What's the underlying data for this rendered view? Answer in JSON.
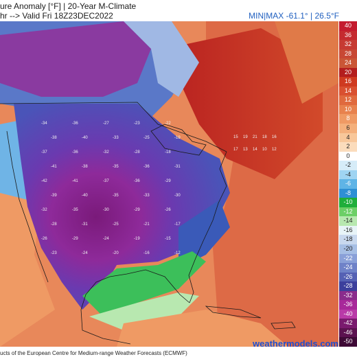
{
  "header": {
    "title_line": "ure Anomaly [°F] | 20-Year M-Climate",
    "valid_line": "hr --> Valid Fri 18Z23DEC2022",
    "minmax": "MIN|MAX -61.1° | 26.5°F"
  },
  "footer": {
    "credit": "ucts of the European Centre for Medium-range Weather Forecasts (ECMWF)",
    "website": "weathermodels.com"
  },
  "colorbar": {
    "ticks": [
      {
        "label": "40",
        "color": "#c41a2e"
      },
      {
        "label": "36",
        "color": "#c52a30"
      },
      {
        "label": "32",
        "color": "#c63a32"
      },
      {
        "label": "28",
        "color": "#c84834"
      },
      {
        "label": "24",
        "color": "#ca5636"
      },
      {
        "label": "20",
        "color": "#b41e1e"
      },
      {
        "label": "16",
        "color": "#cf3a20"
      },
      {
        "label": "14",
        "color": "#d95030"
      },
      {
        "label": "12",
        "color": "#e06a3e"
      },
      {
        "label": "10",
        "color": "#e8824e"
      },
      {
        "label": "8",
        "color": "#ef9a64"
      },
      {
        "label": "6",
        "color": "#f4b07c"
      },
      {
        "label": "4",
        "color": "#f8c79a"
      },
      {
        "label": "2",
        "color": "#fbdcbc"
      },
      {
        "label": "0",
        "color": "#ffffff"
      },
      {
        "label": "-2",
        "color": "#d6ecf8"
      },
      {
        "label": "-4",
        "color": "#9fd4f2"
      },
      {
        "label": "-6",
        "color": "#5fb4e6"
      },
      {
        "label": "-8",
        "color": "#2f8fd4"
      },
      {
        "label": "-10",
        "color": "#1fae3a"
      },
      {
        "label": "-12",
        "color": "#6ccf66"
      },
      {
        "label": "-14",
        "color": "#b8e8b0"
      },
      {
        "label": "-16",
        "color": "#e8f4f8"
      },
      {
        "label": "-18",
        "color": "#c8d8ee"
      },
      {
        "label": "-20",
        "color": "#a6bee4"
      },
      {
        "label": "-22",
        "color": "#8aa0d8"
      },
      {
        "label": "-24",
        "color": "#6f82c8"
      },
      {
        "label": "-26",
        "color": "#5561b4"
      },
      {
        "label": "-28",
        "color": "#3c3f9c"
      },
      {
        "label": "-32",
        "color": "#8a2c8c"
      },
      {
        "label": "-36",
        "color": "#a8289a"
      },
      {
        "label": "-40",
        "color": "#b93aa8"
      },
      {
        "label": "-42",
        "color": "#7a1a6e"
      },
      {
        "label": "-46",
        "color": "#5c1250"
      },
      {
        "label": "-50",
        "color": "#3e0a36"
      }
    ]
  },
  "anomaly_labels": [
    {
      "v": "-34"
    },
    {
      "v": "-36"
    },
    {
      "v": "-27"
    },
    {
      "v": "-23"
    },
    {
      "v": "-22"
    },
    {
      "v": "-38"
    },
    {
      "v": "-40"
    },
    {
      "v": "-33"
    },
    {
      "v": "-25"
    },
    {
      "v": "-19"
    },
    {
      "v": "-37"
    },
    {
      "v": "-36"
    },
    {
      "v": "-32"
    },
    {
      "v": "-28"
    },
    {
      "v": "-18"
    },
    {
      "v": "-41"
    },
    {
      "v": "-38"
    },
    {
      "v": "-35"
    },
    {
      "v": "-36"
    },
    {
      "v": "-31"
    },
    {
      "v": "-42"
    },
    {
      "v": "-41"
    },
    {
      "v": "-37"
    },
    {
      "v": "-36"
    },
    {
      "v": "-29"
    },
    {
      "v": "-39"
    },
    {
      "v": "-40"
    },
    {
      "v": "-35"
    },
    {
      "v": "-33"
    },
    {
      "v": "-30"
    },
    {
      "v": "-32"
    },
    {
      "v": "-35"
    },
    {
      "v": "-30"
    },
    {
      "v": "-29"
    },
    {
      "v": "-26"
    },
    {
      "v": "-28"
    },
    {
      "v": "-31"
    },
    {
      "v": "-25"
    },
    {
      "v": "-21"
    },
    {
      "v": "-17"
    },
    {
      "v": "-26"
    },
    {
      "v": "-29"
    },
    {
      "v": "-24"
    },
    {
      "v": "-19"
    },
    {
      "v": "-15"
    },
    {
      "v": "-23"
    },
    {
      "v": "-24"
    },
    {
      "v": "-20"
    },
    {
      "v": "-16"
    },
    {
      "v": "-12"
    },
    {
      "v": "15"
    },
    {
      "v": "19"
    },
    {
      "v": "21"
    },
    {
      "v": "18"
    },
    {
      "v": "16"
    },
    {
      "v": "17"
    },
    {
      "v": "13"
    },
    {
      "v": "14"
    },
    {
      "v": "10"
    },
    {
      "v": "12"
    }
  ]
}
